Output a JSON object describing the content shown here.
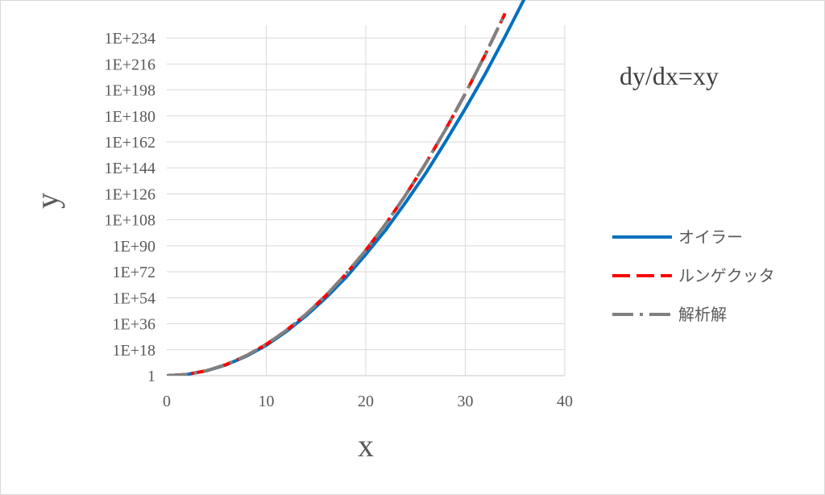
{
  "chart_data": {
    "type": "line",
    "title": "dy/dx=xy",
    "xlabel": "x",
    "ylabel": "y",
    "y_scale": "log10",
    "xlim": [
      0,
      40
    ],
    "ylim_log10": [
      0,
      243
    ],
    "x_ticks": [
      "0",
      "10",
      "20",
      "30",
      "40"
    ],
    "y_ticks": [
      "1",
      "1E+18",
      "1E+36",
      "1E+54",
      "1E+72",
      "1E+90",
      "1E+108",
      "1E+126",
      "1E+144",
      "1E+162",
      "1E+180",
      "1E+198",
      "1E+216",
      "1E+234"
    ],
    "grid": true,
    "legend_position": "right",
    "series": [
      {
        "name": "オイラー",
        "color": "#0070c0",
        "style": "solid",
        "x": [
          0,
          2,
          4,
          6,
          8,
          10,
          12,
          14,
          16,
          18,
          20,
          22,
          24,
          26,
          28,
          30,
          32,
          34,
          36
        ],
        "log10_y": [
          0,
          0.85,
          3.4,
          7.6,
          13.5,
          21.0,
          30.5,
          41.5,
          54.0,
          68.0,
          84.0,
          101.0,
          120.0,
          140.0,
          162.0,
          185.0,
          209.0,
          235.0,
          262.0
        ]
      },
      {
        "name": "ルンゲクッタ",
        "color": "#ff0000",
        "style": "dashed",
        "x": [
          0,
          2,
          4,
          6,
          8,
          10,
          12,
          14,
          16,
          18,
          20,
          22,
          24,
          26,
          28,
          30,
          32,
          34
        ],
        "log10_y": [
          0,
          0.87,
          3.47,
          7.82,
          13.9,
          21.7,
          31.3,
          42.6,
          55.6,
          70.4,
          86.9,
          105.1,
          125.1,
          146.8,
          170.3,
          195.4,
          222.4,
          251.0
        ]
      },
      {
        "name": "解析解",
        "color": "#808080",
        "style": "dash-dot",
        "x": [
          0,
          2,
          4,
          6,
          8,
          10,
          12,
          14,
          16,
          18,
          20,
          22,
          24,
          26,
          28,
          30,
          32,
          34
        ],
        "log10_y": [
          0,
          0.87,
          3.47,
          7.82,
          13.9,
          21.7,
          31.3,
          42.6,
          55.6,
          70.4,
          86.9,
          105.1,
          125.1,
          146.8,
          170.3,
          195.4,
          222.4,
          251.0
        ]
      }
    ]
  }
}
